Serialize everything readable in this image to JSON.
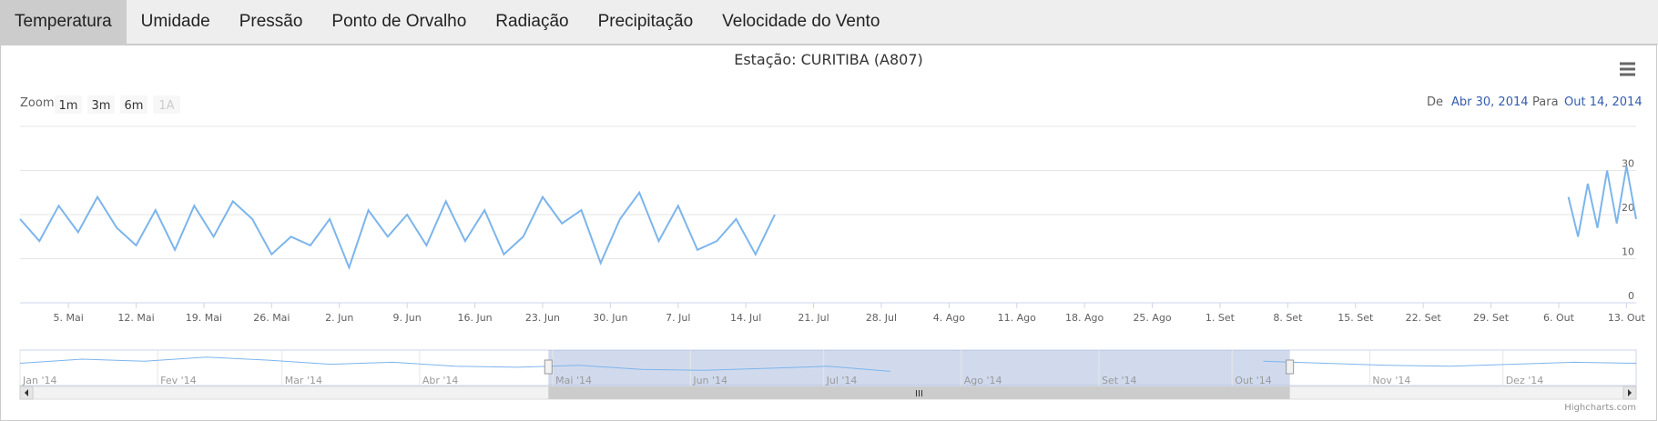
{
  "tabs": [
    "Temperatura",
    "Umidade",
    "Pressão",
    "Ponto de Orvalho",
    "Radiação",
    "Precipitação",
    "Velocidade do Vento"
  ],
  "active_tab": 0,
  "chart_data": {
    "type": "line",
    "title": "Estação: CURITIBA (A807)",
    "zoom_label": "Zoom",
    "zoom_buttons": [
      "1m",
      "3m",
      "6m",
      "1A"
    ],
    "range_from_label": "De",
    "range_from": "Abr 30, 2014",
    "range_to_label": "Para",
    "range_to": "Out 14, 2014",
    "credits": "Highcharts.com",
    "color": "#7cb5ec",
    "x": [
      "2014-04-30",
      "2014-05-02",
      "2014-05-04",
      "2014-05-06",
      "2014-05-08",
      "2014-05-10",
      "2014-05-12",
      "2014-05-14",
      "2014-05-16",
      "2014-05-18",
      "2014-05-20",
      "2014-05-22",
      "2014-05-24",
      "2014-05-26",
      "2014-05-28",
      "2014-05-30",
      "2014-06-01",
      "2014-06-03",
      "2014-06-05",
      "2014-06-07",
      "2014-06-09",
      "2014-06-11",
      "2014-06-13",
      "2014-06-15",
      "2014-06-17",
      "2014-06-19",
      "2014-06-21",
      "2014-06-23",
      "2014-06-25",
      "2014-06-27",
      "2014-06-29",
      "2014-07-01",
      "2014-07-03",
      "2014-07-05",
      "2014-07-07",
      "2014-07-09",
      "2014-07-11",
      "2014-07-13",
      "2014-07-15",
      "2014-07-17",
      "2014-07-19",
      "2014-10-07",
      "2014-10-08",
      "2014-10-09",
      "2014-10-10",
      "2014-10-11",
      "2014-10-12",
      "2014-10-13",
      "2014-10-14"
    ],
    "values": [
      19,
      14,
      22,
      16,
      24,
      17,
      13,
      21,
      12,
      22,
      15,
      23,
      19,
      11,
      15,
      13,
      19,
      8,
      21,
      15,
      20,
      13,
      23,
      14,
      21,
      11,
      15,
      24,
      18,
      21,
      9,
      19,
      25,
      14,
      22,
      12,
      14,
      19,
      11,
      20,
      null,
      24,
      15,
      27,
      17,
      30,
      18,
      31,
      19
    ],
    "xlim": [
      "2014-04-30",
      "2014-10-14"
    ],
    "xticks": [
      {
        "value": "2014-05-05",
        "label": "5. Mai"
      },
      {
        "value": "2014-05-12",
        "label": "12. Mai"
      },
      {
        "value": "2014-05-19",
        "label": "19. Mai"
      },
      {
        "value": "2014-05-26",
        "label": "26. Mai"
      },
      {
        "value": "2014-06-02",
        "label": "2. Jun"
      },
      {
        "value": "2014-06-09",
        "label": "9. Jun"
      },
      {
        "value": "2014-06-16",
        "label": "16. Jun"
      },
      {
        "value": "2014-06-23",
        "label": "23. Jun"
      },
      {
        "value": "2014-06-30",
        "label": "30. Jun"
      },
      {
        "value": "2014-07-07",
        "label": "7. Jul"
      },
      {
        "value": "2014-07-14",
        "label": "14. Jul"
      },
      {
        "value": "2014-07-21",
        "label": "21. Jul"
      },
      {
        "value": "2014-07-28",
        "label": "28. Jul"
      },
      {
        "value": "2014-08-04",
        "label": "4. Ago"
      },
      {
        "value": "2014-08-11",
        "label": "11. Ago"
      },
      {
        "value": "2014-08-18",
        "label": "18. Ago"
      },
      {
        "value": "2014-08-25",
        "label": "25. Ago"
      },
      {
        "value": "2014-09-01",
        "label": "1. Set"
      },
      {
        "value": "2014-09-08",
        "label": "8. Set"
      },
      {
        "value": "2014-09-15",
        "label": "15. Set"
      },
      {
        "value": "2014-09-22",
        "label": "22. Set"
      },
      {
        "value": "2014-09-29",
        "label": "29. Set"
      },
      {
        "value": "2014-10-06",
        "label": "6. Out"
      },
      {
        "value": "2014-10-13",
        "label": "13. Out"
      }
    ],
    "ylim": [
      0,
      40
    ],
    "yticks": [
      0,
      10,
      20,
      30
    ],
    "grid": true,
    "navigator": {
      "x": [
        "2014-01-01",
        "2014-01-15",
        "2014-01-29",
        "2014-02-12",
        "2014-02-26",
        "2014-03-12",
        "2014-03-26",
        "2014-04-09",
        "2014-04-23",
        "2014-05-07",
        "2014-05-21",
        "2014-06-04",
        "2014-06-18",
        "2014-07-02",
        "2014-07-16",
        "2014-07-30",
        "2014-08-13",
        "2014-08-27",
        "2014-09-10",
        "2014-09-24",
        "2014-10-08",
        "2014-10-22",
        "2014-11-05",
        "2014-11-19",
        "2014-12-03",
        "2014-12-17",
        "2014-12-31"
      ],
      "values": [
        22,
        26,
        24,
        28,
        25,
        21,
        23,
        19,
        18,
        20,
        16,
        15,
        17,
        19,
        14,
        null,
        null,
        null,
        null,
        null,
        24,
        22,
        20,
        19,
        21,
        23,
        22
      ],
      "xlim": [
        "2014-01-01",
        "2014-12-31"
      ],
      "ylim": [
        0,
        35
      ],
      "xticks": [
        {
          "value": "2014-01-01",
          "label": "Jan '14"
        },
        {
          "value": "2014-02-01",
          "label": "Fev '14"
        },
        {
          "value": "2014-03-01",
          "label": "Mar '14"
        },
        {
          "value": "2014-04-01",
          "label": "Abr '14"
        },
        {
          "value": "2014-05-01",
          "label": "Mai '14"
        },
        {
          "value": "2014-06-01",
          "label": "Jun '14"
        },
        {
          "value": "2014-07-01",
          "label": "Jul '14"
        },
        {
          "value": "2014-08-01",
          "label": "Ago '14"
        },
        {
          "value": "2014-09-01",
          "label": "Set '14"
        },
        {
          "value": "2014-10-01",
          "label": "Out '14"
        },
        {
          "value": "2014-11-01",
          "label": "Nov '14"
        },
        {
          "value": "2014-12-01",
          "label": "Dez '14"
        }
      ]
    }
  }
}
